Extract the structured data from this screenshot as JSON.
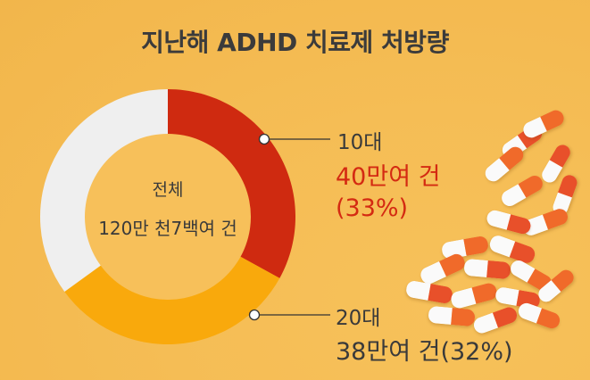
{
  "chart_data": {
    "type": "pie",
    "title": "지난해 ADHD 치료제 처방량",
    "center_label": "전체",
    "center_value": "120만 천7백여 건",
    "legend": "none",
    "slices": [
      {
        "name": "10대",
        "label": "40만여 건",
        "pct_label": "(33%)",
        "value": 33,
        "color": "#cf2a10"
      },
      {
        "name": "20대",
        "label": "38만여 건(32%)",
        "value": 32,
        "color": "#f9a90c"
      },
      {
        "name": "",
        "value": 35,
        "color": "#efefef"
      }
    ]
  }
}
